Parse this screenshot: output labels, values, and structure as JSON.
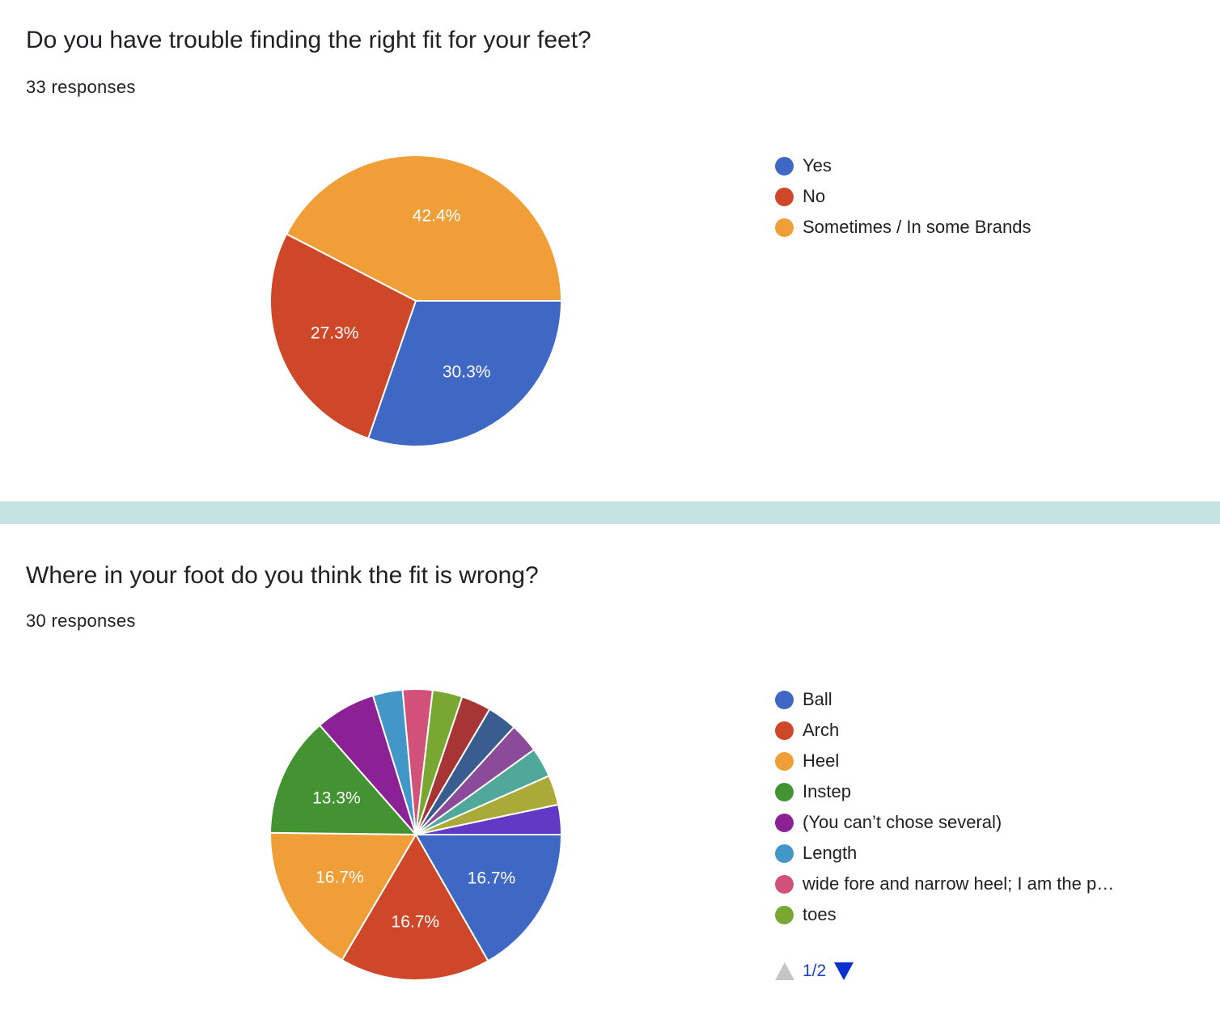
{
  "colors": {
    "divider": "#c6e3e3",
    "pager_active": "#0b2fd0",
    "pager_inactive": "#c5c5c5"
  },
  "section1": {
    "title": "Do you have trouble finding the right fit for your feet?",
    "responses": "33 responses"
  },
  "section2": {
    "title": "Where in your foot do you think the fit is wrong?",
    "responses": "30 responses",
    "pager": {
      "text": "1/2",
      "prev_icon": "triangle-up-icon",
      "next_icon": "triangle-down-icon"
    }
  },
  "chart_data": [
    {
      "type": "pie",
      "title": "Do you have trouble finding the right fit for your feet?",
      "legend_position": "right",
      "slices": [
        {
          "label": "Yes",
          "value": 30.3,
          "display": "30.3%",
          "color": "#3f68c5"
        },
        {
          "label": "No",
          "value": 27.3,
          "display": "27.3%",
          "color": "#cd4728"
        },
        {
          "label": "Sometimes / In some Brands",
          "value": 42.4,
          "display": "42.4%",
          "color": "#f09f38"
        }
      ],
      "legend": [
        {
          "label": "Yes",
          "color": "#3f68c5"
        },
        {
          "label": "No",
          "color": "#cd4728"
        },
        {
          "label": "Sometimes / In some Brands",
          "color": "#f09f38"
        }
      ]
    },
    {
      "type": "pie",
      "title": "Where in your foot do you think the fit is wrong?",
      "legend_position": "right",
      "slices": [
        {
          "label": "Ball",
          "value": 16.7,
          "display": "16.7%",
          "color": "#3f68c5"
        },
        {
          "label": "Arch",
          "value": 16.7,
          "display": "16.7%",
          "color": "#cd4728"
        },
        {
          "label": "Heel",
          "value": 16.7,
          "display": "16.7%",
          "color": "#f09f38"
        },
        {
          "label": "Instep",
          "value": 13.3,
          "display": "13.3%",
          "color": "#449332"
        },
        {
          "label": "(You can’t chose several)",
          "value": 6.7,
          "display": "",
          "color": "#8b2195"
        },
        {
          "label": "Length",
          "value": 3.3,
          "display": "",
          "color": "#4297c8"
        },
        {
          "label": "wide fore and narrow heel; I am the p…",
          "value": 3.3,
          "display": "",
          "color": "#d25179"
        },
        {
          "label": "toes",
          "value": 3.3,
          "display": "",
          "color": "#79a832"
        },
        {
          "label": "",
          "value": 3.3,
          "display": "",
          "color": "#a83535"
        },
        {
          "label": "",
          "value": 3.3,
          "display": "",
          "color": "#3a5d8f"
        },
        {
          "label": "",
          "value": 3.3,
          "display": "",
          "color": "#8b4b98"
        },
        {
          "label": "",
          "value": 3.3,
          "display": "",
          "color": "#50a89a"
        },
        {
          "label": "",
          "value": 3.3,
          "display": "",
          "color": "#aaaa38"
        },
        {
          "label": "",
          "value": 3.3,
          "display": "",
          "color": "#6139c4"
        }
      ],
      "legend": [
        {
          "label": "Ball",
          "color": "#3f68c5"
        },
        {
          "label": "Arch",
          "color": "#cd4728"
        },
        {
          "label": "Heel",
          "color": "#f09f38"
        },
        {
          "label": "Instep",
          "color": "#449332"
        },
        {
          "label": "(You can’t chose several)",
          "color": "#8b2195"
        },
        {
          "label": "Length",
          "color": "#4297c8"
        },
        {
          "label": "wide fore and narrow heel; I am the p…",
          "color": "#d25179"
        },
        {
          "label": "toes",
          "color": "#79a832"
        }
      ]
    }
  ]
}
